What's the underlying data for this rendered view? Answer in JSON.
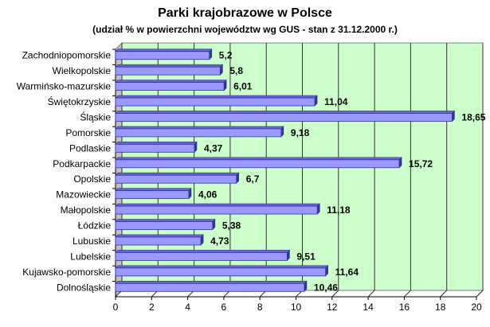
{
  "chart_data": {
    "type": "bar",
    "orientation": "horizontal",
    "style": "3d",
    "title": "Parki krajobrazowe w Polsce",
    "subtitle": "(udział % w powierzchni województw wg GUS - stan z 31.12.2000 r.)",
    "categories": [
      "Zachodniopomorskie",
      "Wielkopolskie",
      "Warmińsko-mazurskie",
      "Świętokrzyskie",
      "Śląskie",
      "Pomorskie",
      "Podlaskie",
      "Podkarpackie",
      "Opolskie",
      "Mazowieckie",
      "Małopolskie",
      "Łódzkie",
      "Lubuskie",
      "Lubelskie",
      "Kujawsko-pomorskie",
      "Dolnośląskie"
    ],
    "values": [
      5.2,
      5.8,
      6.01,
      11.04,
      18.65,
      9.18,
      4.37,
      15.72,
      6.7,
      4.06,
      11.18,
      5.38,
      4.73,
      9.51,
      11.64,
      10.46
    ],
    "data_labels": [
      "5,2",
      "5,8",
      "6,01",
      "11,04",
      "18,65",
      "9,18",
      "4,37",
      "15,72",
      "6,7",
      "4,06",
      "11,18",
      "5,38",
      "4,73",
      "9,51",
      "11,64",
      "10,46"
    ],
    "xlim": [
      0,
      20
    ],
    "xticks": [
      "0",
      "2",
      "4",
      "6",
      "8",
      "10",
      "12",
      "14",
      "16",
      "18",
      "20"
    ],
    "grid": true,
    "legend": "none",
    "colors": {
      "bar": "#9999ff",
      "bar_edge": "#333399",
      "wall": "#ccffcc",
      "floor": "#c0c0c0"
    }
  }
}
